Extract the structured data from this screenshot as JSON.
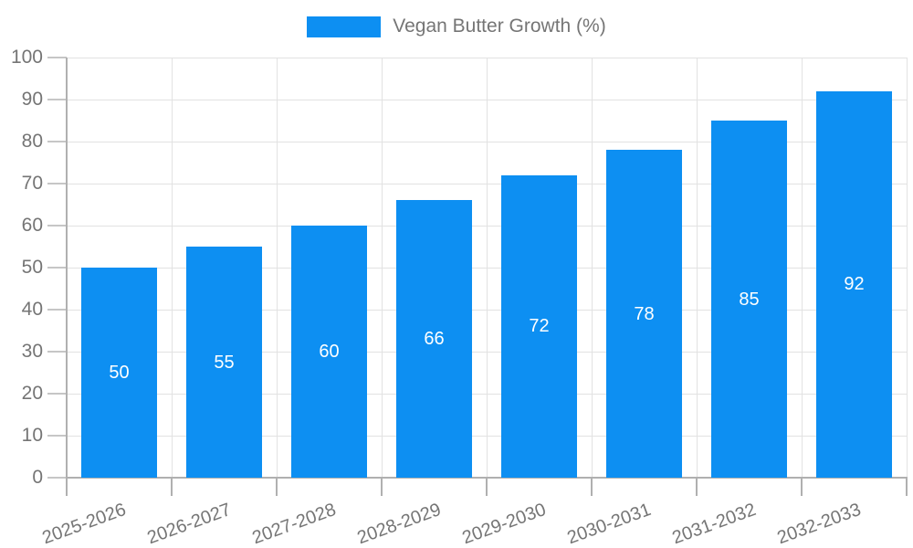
{
  "chart_data": {
    "type": "bar",
    "title": "",
    "categories": [
      "2025-2026",
      "2026-2027",
      "2027-2028",
      "2028-2029",
      "2029-2030",
      "2030-2031",
      "2031-2032",
      "2032-2033"
    ],
    "series": [
      {
        "name": "Vegan Butter Growth (%)",
        "values": [
          50,
          55,
          60,
          66,
          72,
          78,
          85,
          92
        ]
      }
    ],
    "data_labels": [
      "50",
      "55",
      "60",
      "66",
      "72",
      "78",
      "85",
      "92"
    ],
    "y_ticks": [
      "0",
      "10",
      "20",
      "30",
      "40",
      "50",
      "60",
      "70",
      "80",
      "90",
      "100"
    ],
    "ylim": [
      0,
      100
    ],
    "ytick_step": 10,
    "xlabel": "",
    "ylabel": "",
    "grid": true,
    "vertical_grid": true,
    "legend_position": "top",
    "x_label_rotation_deg": -20,
    "colors": {
      "bar": "#0D8FF2",
      "data_label": "#ffffff",
      "axis": "#b0b0b0",
      "grid": "#e2e2e2",
      "y_tick_mark": "#c6c6c6",
      "x_tick_mark": "#b0b0b0",
      "tick_label": "#757575",
      "legend_text": "#757575",
      "background": "#ffffff"
    }
  }
}
